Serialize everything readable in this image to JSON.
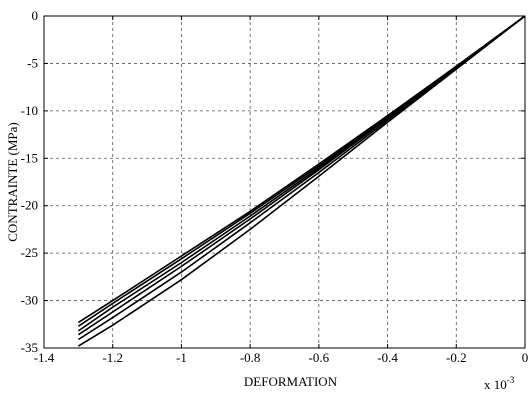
{
  "chart_data": {
    "type": "line",
    "title": "",
    "xlabel": "DEFORMATION",
    "ylabel": "CONTRAINTE (MPa)",
    "x_multiplier_label": "x 10",
    "x_multiplier_exponent": "-3",
    "xlim": [
      -1.4,
      0
    ],
    "ylim": [
      -35,
      0
    ],
    "x_ticks": [
      -1.4,
      -1.2,
      -1.0,
      -0.8,
      -0.6,
      -0.4,
      -0.2,
      0
    ],
    "x_tick_labels": [
      "-1.4",
      "-1.2",
      "-1",
      "-0.8",
      "-0.6",
      "-0.4",
      "-0.2",
      "0"
    ],
    "y_ticks": [
      0,
      -5,
      -10,
      -15,
      -20,
      -25,
      -30,
      -35
    ],
    "y_tick_labels": [
      "0",
      "-5",
      "-10",
      "-15",
      "-20",
      "-25",
      "-30",
      "-35"
    ],
    "grid": true,
    "series": [
      {
        "x": [
          0,
          -0.2,
          -0.4,
          -0.6,
          -0.8,
          -1.0,
          -1.2,
          -1.3
        ],
        "y": [
          0,
          -5.3,
          -10.5,
          -15.6,
          -20.6,
          -25.3,
          -30.0,
          -32.3
        ]
      },
      {
        "x": [
          0,
          -0.2,
          -0.4,
          -0.6,
          -0.8,
          -1.0,
          -1.2,
          -1.3
        ],
        "y": [
          0,
          -5.3,
          -10.6,
          -15.8,
          -20.8,
          -25.6,
          -30.3,
          -32.7
        ]
      },
      {
        "x": [
          0,
          -0.2,
          -0.4,
          -0.6,
          -0.8,
          -1.0,
          -1.2,
          -1.3
        ],
        "y": [
          0,
          -5.4,
          -10.7,
          -16.0,
          -21.1,
          -26.0,
          -30.7,
          -33.2
        ]
      },
      {
        "x": [
          0,
          -0.2,
          -0.4,
          -0.6,
          -0.8,
          -1.0,
          -1.2,
          -1.3
        ],
        "y": [
          0,
          -5.4,
          -10.8,
          -16.2,
          -21.4,
          -26.4,
          -31.2,
          -33.6
        ]
      },
      {
        "x": [
          0,
          -0.2,
          -0.4,
          -0.6,
          -0.8,
          -1.0,
          -1.2,
          -1.3
        ],
        "y": [
          0,
          -5.5,
          -11.0,
          -16.5,
          -21.8,
          -27.0,
          -31.8,
          -34.1
        ]
      },
      {
        "x": [
          0,
          -0.2,
          -0.4,
          -0.6,
          -0.8,
          -1.0,
          -1.2,
          -1.3
        ],
        "y": [
          0,
          -5.6,
          -11.2,
          -16.9,
          -22.5,
          -27.8,
          -32.6,
          -34.8
        ]
      }
    ]
  }
}
